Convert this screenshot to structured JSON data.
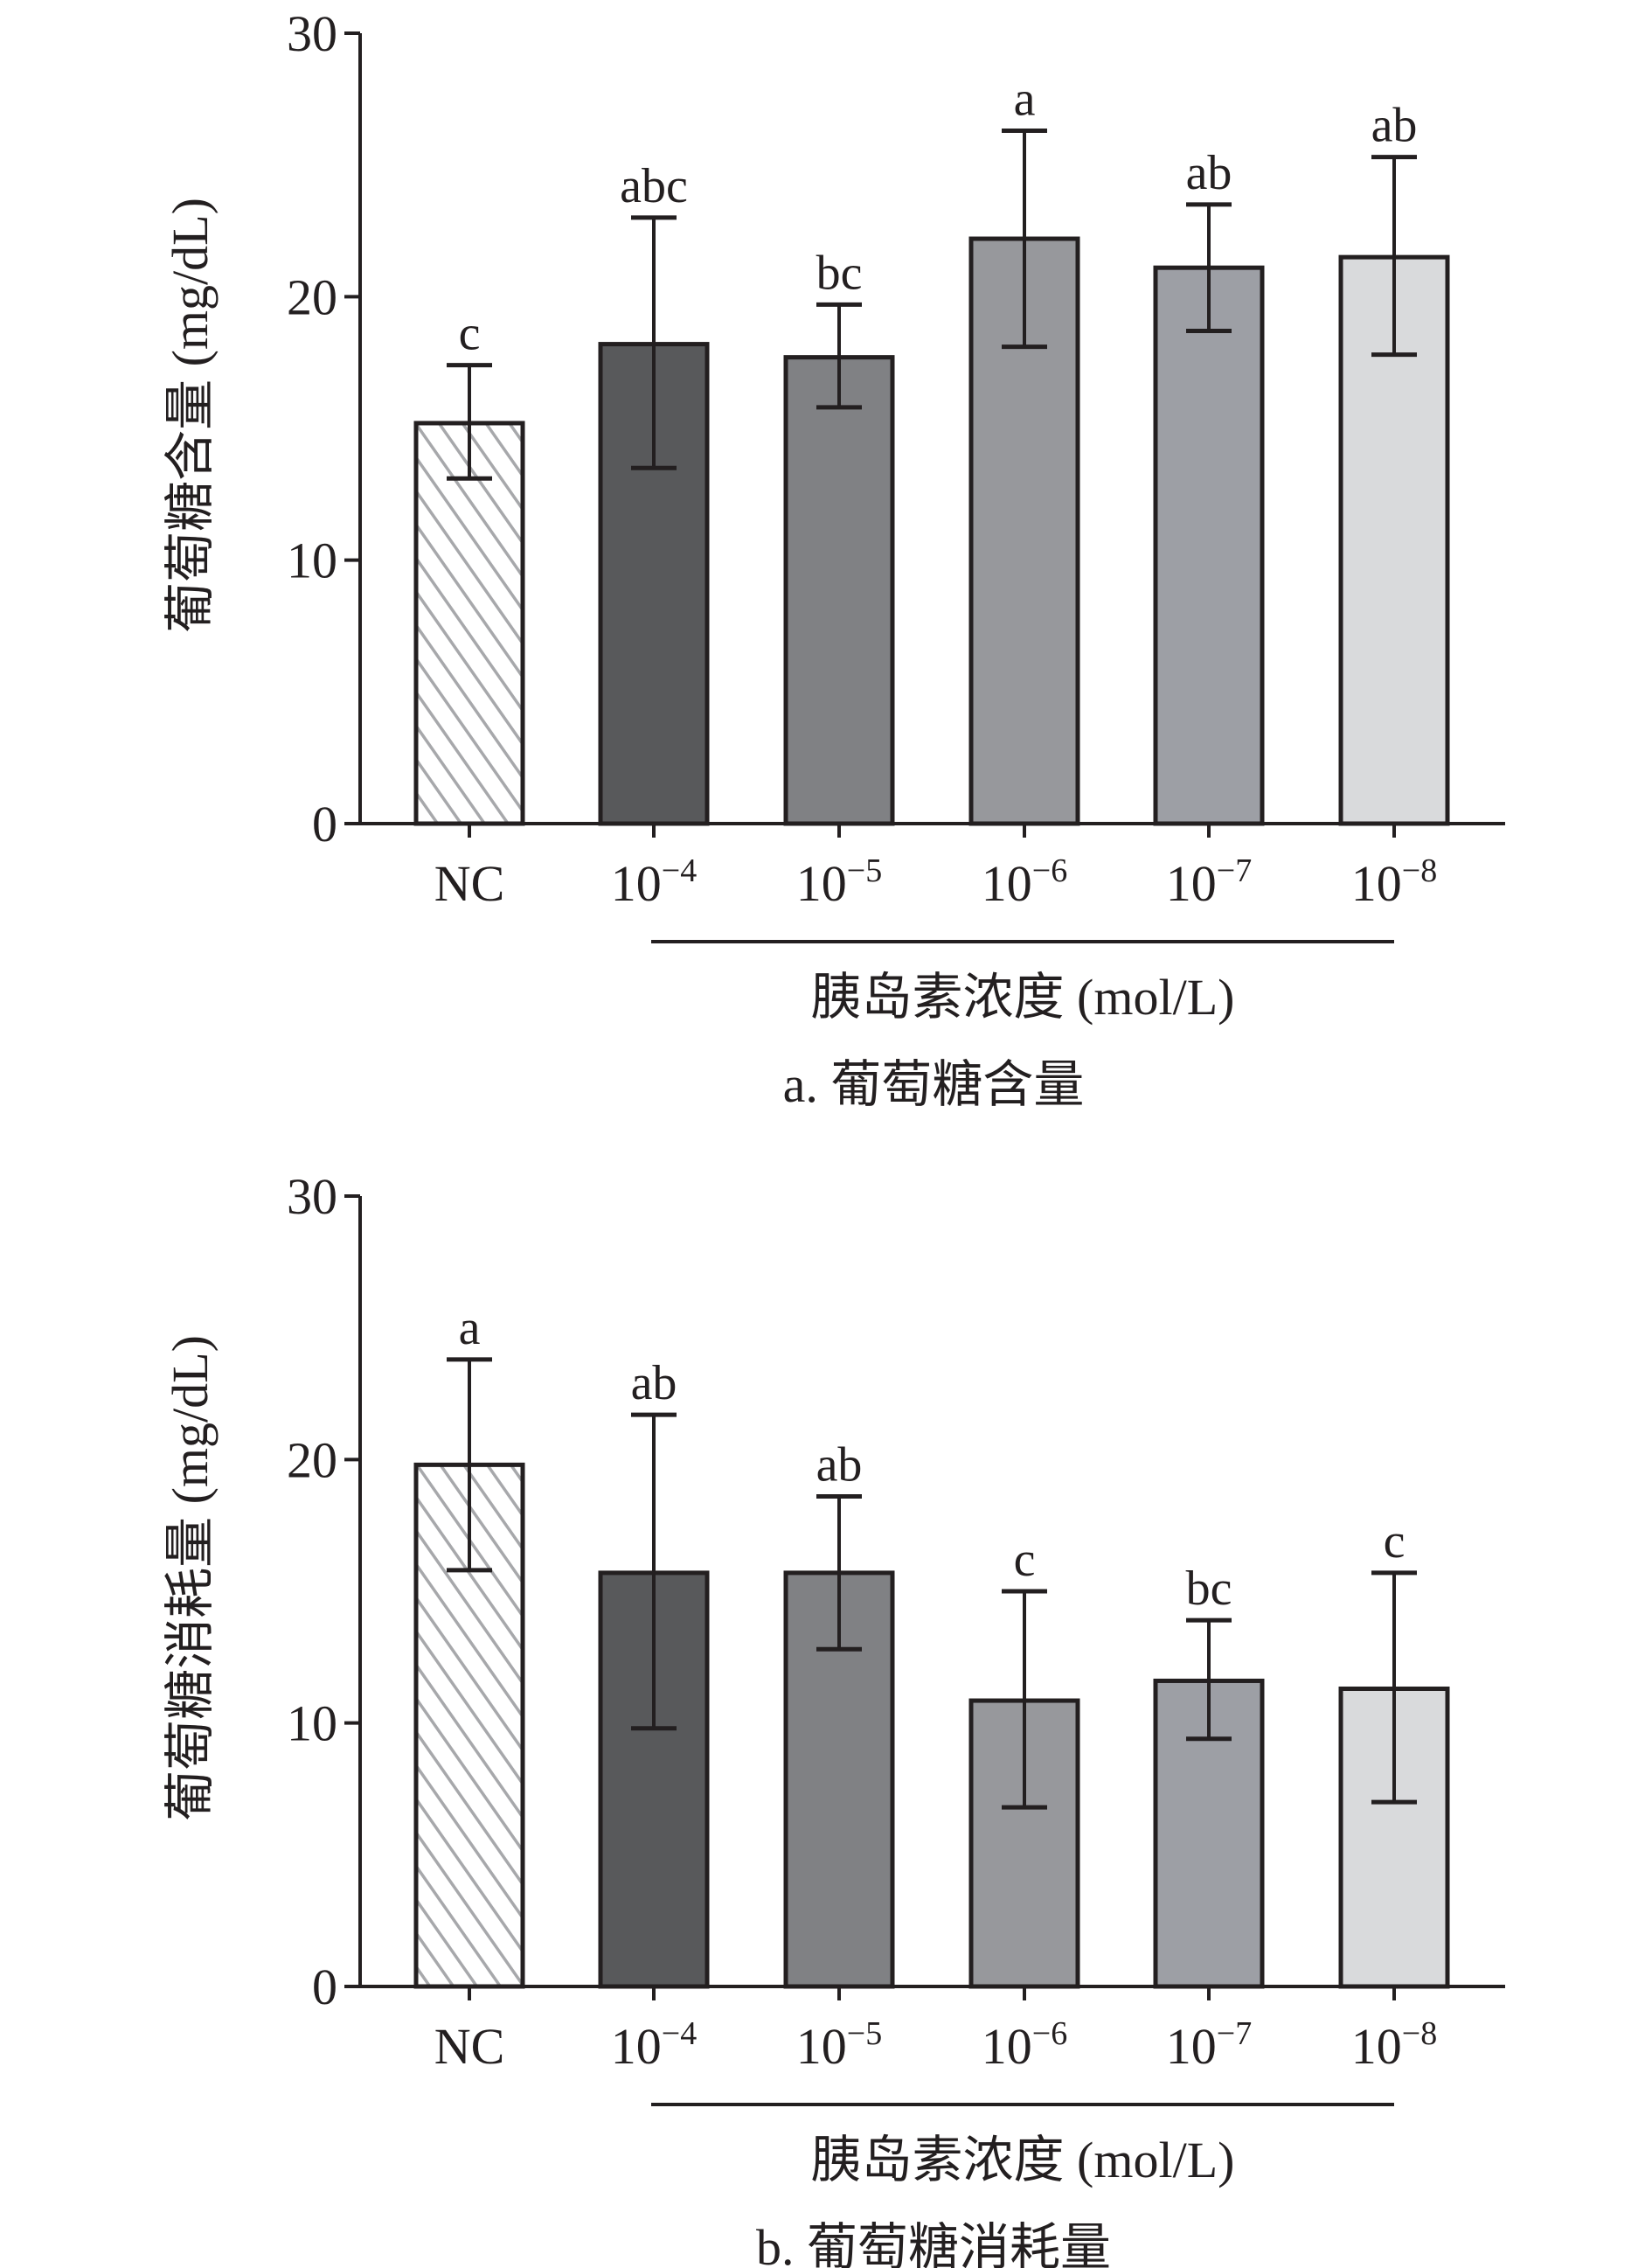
{
  "chart_data": [
    {
      "type": "bar",
      "title": "a. 葡萄糖含量",
      "xlabel": "胰岛素浓度 (mol/L)",
      "ylabel": "葡萄糖含量 (mg/dL)",
      "ylim": [
        0,
        30
      ],
      "yticks": [
        0,
        10,
        20,
        30
      ],
      "categories": [
        "NC",
        "10⁻⁴",
        "10⁻⁵",
        "10⁻⁶",
        "10⁻⁷",
        "10⁻⁸"
      ],
      "values": [
        15.2,
        18.2,
        17.7,
        22.2,
        21.1,
        21.5
      ],
      "error_low": [
        13.1,
        13.5,
        15.8,
        18.1,
        18.7,
        17.8
      ],
      "error_high": [
        17.4,
        23.0,
        19.7,
        26.3,
        23.5,
        25.3
      ],
      "significance_labels": [
        "c",
        "abc",
        "bc",
        "a",
        "ab",
        "ab"
      ],
      "grid": false
    },
    {
      "type": "bar",
      "title": "b. 葡萄糖消耗量",
      "xlabel": "胰岛素浓度 (mol/L)",
      "ylabel": "葡萄糖消耗量 (mg/dL)",
      "ylim": [
        0,
        30
      ],
      "yticks": [
        0,
        10,
        20,
        30
      ],
      "categories": [
        "NC",
        "10⁻⁴",
        "10⁻⁵",
        "10⁻⁶",
        "10⁻⁷",
        "10⁻⁸"
      ],
      "values": [
        19.8,
        15.7,
        15.7,
        10.85,
        11.6,
        11.3
      ],
      "error_low": [
        15.8,
        9.8,
        12.8,
        6.8,
        9.4,
        7.0
      ],
      "error_high": [
        23.8,
        21.7,
        18.6,
        15.0,
        13.9,
        15.7
      ],
      "significance_labels": [
        "a",
        "ab",
        "ab",
        "c",
        "bc",
        "c"
      ],
      "grid": false
    }
  ],
  "colors": {
    "bars": [
      "hatched",
      "#58595b",
      "#808184",
      "#97989c",
      "#9d9fa5",
      "#d9dadc"
    ],
    "hatch_stroke": "#a7a8ab",
    "axis": "#231f20"
  }
}
